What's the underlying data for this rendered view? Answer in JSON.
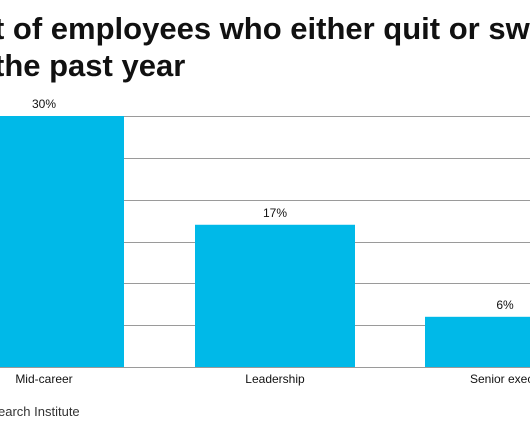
{
  "title": {
    "line1": "t of employees who either quit or sw",
    "line2": "the past year"
  },
  "source": "earch Institute",
  "colors": {
    "bar": "#00b9e8",
    "grid": "#9a9a9a",
    "text": "#111111"
  },
  "chart_data": {
    "type": "bar",
    "title": "",
    "xlabel": "",
    "ylabel": "",
    "categories": [
      "Mid-career",
      "Leadership",
      "Senior execu"
    ],
    "values": [
      30,
      17,
      6
    ],
    "value_labels": [
      "30%",
      "17%",
      "6%"
    ],
    "ylim": [
      0,
      30
    ],
    "grid": true,
    "gridline_values": [
      0,
      5,
      10,
      15,
      20,
      25,
      30
    ],
    "legend": "none"
  }
}
